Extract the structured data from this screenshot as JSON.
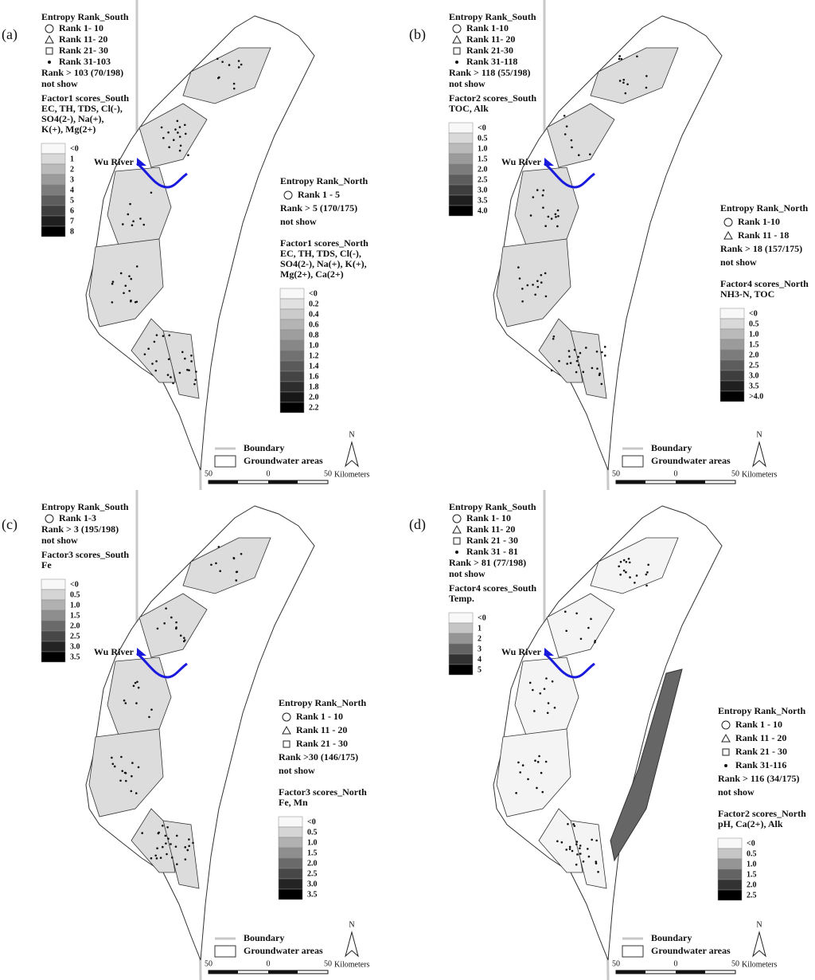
{
  "legend": {
    "boundary": "Boundary",
    "groundwater": "Groundwater areas",
    "north": "N",
    "scale": [
      "50",
      "0",
      "50"
    ],
    "unit": "Kilometers"
  },
  "panels": [
    {
      "label": "(a)",
      "river": "Wu River",
      "south": {
        "title": "Entropy Rank_South",
        "ranks": [
          "Rank 1- 10",
          "Rank 11- 20",
          "Rank 21- 30",
          "Rank 31-103"
        ],
        "note": [
          "Rank > 103 (70/198)",
          "not show"
        ]
      },
      "south_factor": {
        "title": "Factor1 scores_South",
        "variables": [
          "EC, TH, TDS, Cl(-),",
          "SO4(2-), Na(+),",
          "K(+), Mg(2+)"
        ],
        "scale": [
          "<0",
          "1",
          "2",
          "3",
          "4",
          "5",
          "6",
          "7",
          "8"
        ]
      },
      "north": {
        "title": "Entropy Rank_North",
        "ranks": [
          "Rank 1 - 5"
        ],
        "note": [
          "Rank > 5 (170/175)",
          "not show"
        ]
      },
      "north_factor": {
        "title": "Factor1 scores_North",
        "variables": [
          "EC, TH, TDS, Cl(-),",
          "SO4(2-), Na(+), K(+),",
          "Mg(2+), Ca(2+)"
        ],
        "scale": [
          "<0",
          "0.2",
          "0.4",
          "0.6",
          "0.8",
          "1.0",
          "1.2",
          "1.4",
          "1.6",
          "1.8",
          "2.0",
          "2.2"
        ]
      }
    },
    {
      "label": "(b)",
      "river": "Wu River",
      "south": {
        "title": "Entropy Rank_South",
        "ranks": [
          "Rank 1-10",
          "Rank 11- 20",
          "Rank 21-30",
          "Rank 31-118"
        ],
        "note": [
          "Rank > 118 (55/198)",
          "not show"
        ]
      },
      "south_factor": {
        "title": "Factor2 scores_South",
        "variables": [
          "TOC, Alk"
        ],
        "scale": [
          "<0",
          "0.5",
          "1.0",
          "1.5",
          "2.0",
          "2.5",
          "3.0",
          "3.5",
          "4.0"
        ]
      },
      "north": {
        "title": "Entropy Rank_North",
        "ranks": [
          "Rank 1-10",
          "Rank 11 - 18"
        ],
        "note": [
          "Rank > 18 (157/175)",
          "not show"
        ]
      },
      "north_factor": {
        "title": "Factor4 scores_North",
        "variables": [
          "NH3-N, TOC"
        ],
        "scale": [
          "<0",
          "0.5",
          "1.0",
          "1.5",
          "2.0",
          "2.5",
          "3.0",
          "3.5",
          ">4.0"
        ]
      }
    },
    {
      "label": "(c)",
      "river": "Wu River",
      "south": {
        "title": "Entropy Rank_South",
        "ranks": [
          "Rank 1-3"
        ],
        "note": [
          "Rank > 3 (195/198)",
          "not show"
        ]
      },
      "south_factor": {
        "title": "Factor3 scores_South",
        "variables": [
          "Fe"
        ],
        "scale": [
          "<0",
          "0.5",
          "1.0",
          "1.5",
          "2.0",
          "2.5",
          "3.0",
          "3.5"
        ]
      },
      "north": {
        "title": "Entropy Rank_North",
        "ranks": [
          "Rank 1 - 10",
          "Rank 11 - 20",
          "Rank 21 - 30"
        ],
        "note": [
          "Rank >30 (146/175)",
          "not show"
        ]
      },
      "north_factor": {
        "title": "Factor3 scores_North",
        "variables": [
          "Fe, Mn"
        ],
        "scale": [
          "<0",
          "0.5",
          "1.0",
          "1.5",
          "2.0",
          "2.5",
          "3.0",
          "3.5"
        ]
      }
    },
    {
      "label": "(d)",
      "river": "Wu River",
      "south": {
        "title": "Entropy Rank_South",
        "ranks": [
          "Rank 1- 10",
          "Rank 11- 20",
          "Rank 21 - 30",
          "Rank 31 - 81"
        ],
        "note": [
          "Rank > 81 (77/198)",
          "not show"
        ]
      },
      "south_factor": {
        "title": "Factor4 scores_South",
        "variables": [
          "Temp."
        ],
        "scale": [
          "<0",
          "1",
          "2",
          "3",
          "4",
          "5"
        ]
      },
      "north": {
        "title": "Entropy Rank_North",
        "ranks": [
          "Rank 1 - 10",
          "Rank 11 - 20",
          "Rank 21 - 30",
          "Rank 31-116"
        ],
        "note": [
          "Rank > 116 (34/175)",
          "not show"
        ]
      },
      "north_factor": {
        "title": "Factor2 scores_North",
        "variables": [
          "pH, Ca(2+), Alk"
        ],
        "scale": [
          "<0",
          "0.5",
          "1.0",
          "1.5",
          "2.0",
          "2.5"
        ]
      }
    }
  ]
}
